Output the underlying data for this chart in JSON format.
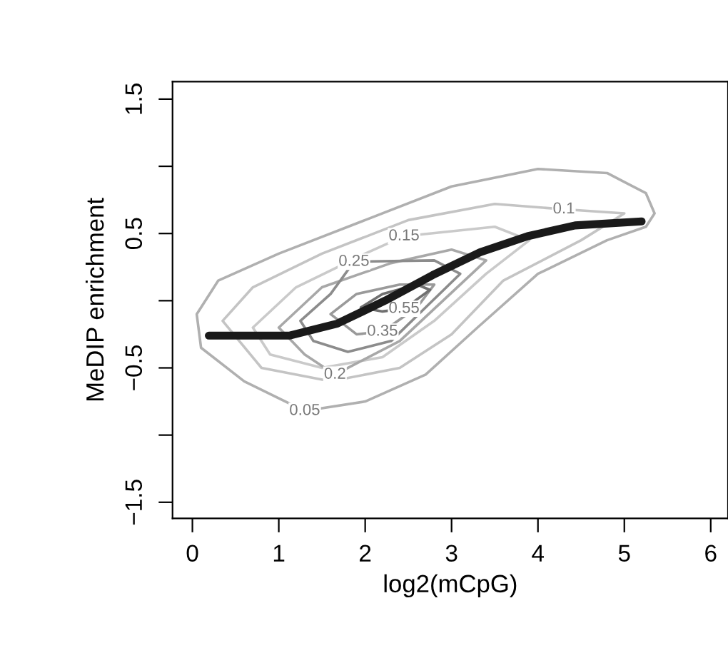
{
  "chart_data": {
    "type": "line",
    "xlabel": "log2(mCpG)",
    "ylabel": "MeDIP enrichment",
    "xlim": [
      -0.23,
      6.2
    ],
    "ylim": [
      -1.62,
      1.63
    ],
    "xticks": [
      0,
      1,
      2,
      3,
      4,
      5,
      6
    ],
    "yticks": [
      -1.5,
      {
        "value": -1,
        "label": null
      },
      -0.5,
      {
        "value": 0,
        "label": null
      },
      0.5,
      {
        "value": 1,
        "label": null
      },
      1.5
    ],
    "grid": false,
    "legend": false,
    "marker": "none",
    "line_style": "solid",
    "series": [
      {
        "color": "#1a1a1a",
        "x": [
          0.19,
          1.12,
          1.68,
          2.23,
          2.78,
          3.33,
          3.88,
          4.43,
          5.2
        ],
        "values": [
          -0.26,
          -0.26,
          -0.17,
          0.0,
          0.19,
          0.36,
          0.48,
          0.56,
          0.59
        ]
      }
    ],
    "annotations": [
      {
        "text": "0.05",
        "x": 1.3,
        "y": -0.82
      },
      {
        "text": "0.1",
        "x": 4.3,
        "y": 0.68
      },
      {
        "text": "0.15",
        "x": 2.45,
        "y": 0.48
      },
      {
        "text": "0.2",
        "x": 1.65,
        "y": -0.55
      },
      {
        "text": "0.25",
        "x": 1.87,
        "y": 0.29
      },
      {
        "text": "0.35",
        "x": 2.2,
        "y": -0.23
      },
      {
        "text": "0.55",
        "x": 2.45,
        "y": -0.06
      }
    ]
  }
}
